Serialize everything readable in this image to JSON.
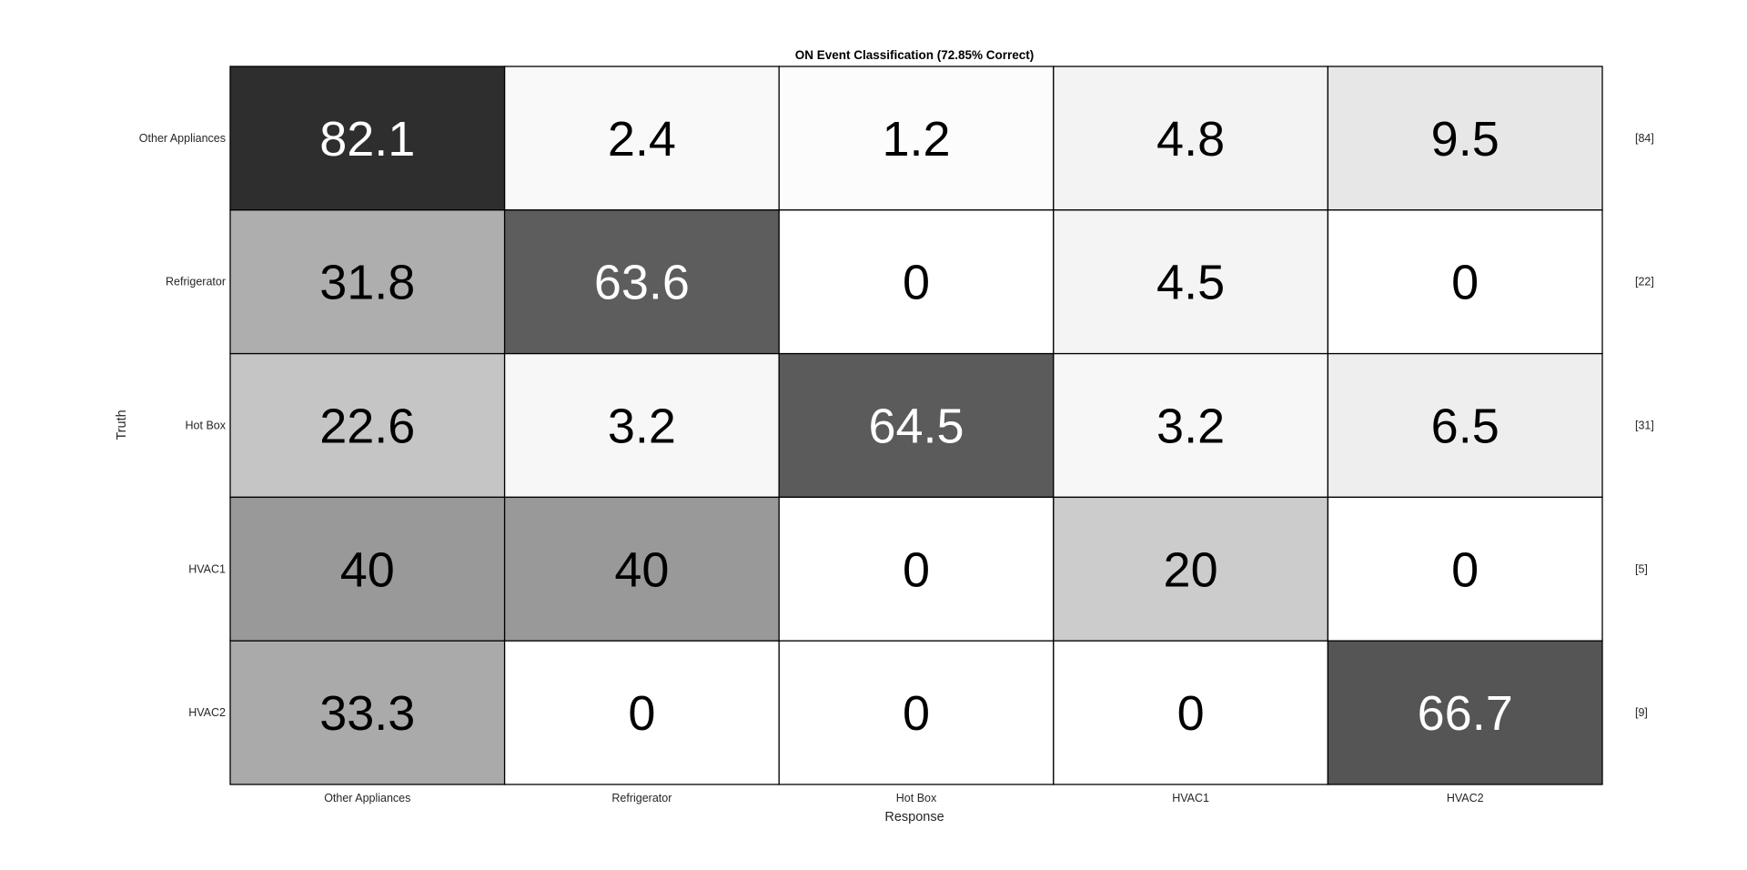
{
  "chart_data": {
    "type": "heatmap",
    "title": "ON Event Classification (72.85% Correct)",
    "xlabel": "Response",
    "ylabel": "Truth",
    "x_categories": [
      "Other Appliances",
      "Refrigerator",
      "Hot Box",
      "HVAC1",
      "HVAC2"
    ],
    "y_categories": [
      "Other Appliances",
      "Refrigerator",
      "Hot Box",
      "HVAC1",
      "HVAC2"
    ],
    "values": [
      [
        82.1,
        2.4,
        1.2,
        4.8,
        9.5
      ],
      [
        31.8,
        63.6,
        0,
        4.5,
        0
      ],
      [
        22.6,
        3.2,
        64.5,
        3.2,
        6.5
      ],
      [
        40,
        40,
        0,
        20,
        0
      ],
      [
        33.3,
        0,
        0,
        0,
        66.7
      ]
    ],
    "value_labels": [
      [
        "82.1",
        "2.4",
        "1.2",
        "4.8",
        "9.5"
      ],
      [
        "31.8",
        "63.6",
        "0",
        "4.5",
        "0"
      ],
      [
        "22.6",
        "3.2",
        "64.5",
        "3.2",
        "6.5"
      ],
      [
        "40",
        "40",
        "0",
        "20",
        "0"
      ],
      [
        "33.3",
        "0",
        "0",
        "0",
        "66.7"
      ]
    ],
    "row_counts": [
      "[84]",
      "[22]",
      "[31]",
      "[5]",
      "[9]"
    ],
    "value_range": [
      0,
      100
    ],
    "colormap": "gray-reversed",
    "grid": true,
    "legend": "none"
  },
  "colors": {
    "background": "#ffffff",
    "cell_border": "#000000",
    "text_dark": "#000000",
    "text_light": "#ffffff",
    "axis_text": "#262626"
  }
}
